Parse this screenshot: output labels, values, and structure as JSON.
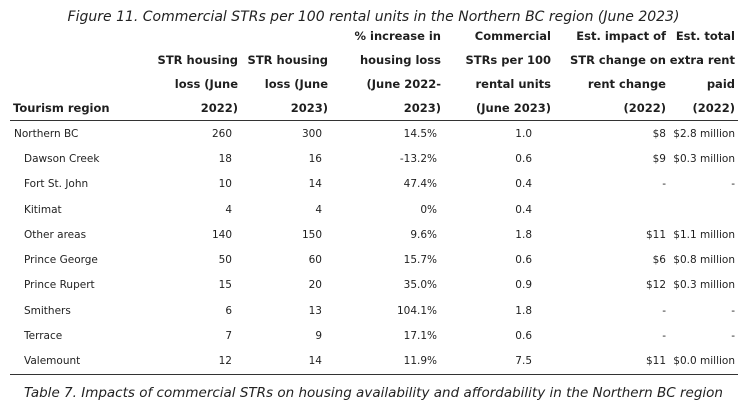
{
  "figure_caption": "Figure 11. Commercial STRs per 100 rental units in the Northern BC region (June 2023)",
  "table_caption": "Table 7. Impacts of commercial STRs on housing availability and affordability in the Northern BC region",
  "headers": [
    "Tourism region",
    "STR housing loss (June 2022)",
    "STR housing loss (June 2023)",
    "% increase in housing loss (June 2022-2023)",
    "Commercial STRs per 100 rental units (June 2023)",
    "Est. impact of STR change on rent change (2022)",
    "Est. total extra rent paid (2022)"
  ],
  "rows": [
    [
      "Northern BC",
      "260",
      "300",
      "14.5%",
      "1.0",
      "$8",
      "$2.8 million"
    ],
    [
      "Dawson Creek",
      "18",
      "16",
      "-13.2%",
      "0.6",
      "$9",
      "$0.3 million"
    ],
    [
      "Fort St. John",
      "10",
      "14",
      "47.4%",
      "0.4",
      "-",
      "-"
    ],
    [
      "Kitimat",
      "4",
      "4",
      "0%",
      "0.4",
      "",
      ""
    ],
    [
      "Other areas",
      "140",
      "150",
      "9.6%",
      "1.8",
      "$11",
      "$1.1 million"
    ],
    [
      "Prince George",
      "50",
      "60",
      "15.7%",
      "0.6",
      "$6",
      "$0.8 million"
    ],
    [
      "Prince Rupert",
      "15",
      "20",
      "35.0%",
      "0.9",
      "$12",
      "$0.3 million"
    ],
    [
      "Smithers",
      "6",
      "13",
      "104.1%",
      "1.8",
      "-",
      "-"
    ],
    [
      "Terrace",
      "7",
      "9",
      "17.1%",
      "0.6",
      "-",
      "-"
    ],
    [
      "Valemount",
      "12",
      "14",
      "11.9%",
      "7.5",
      "$11",
      "$0.0 million"
    ]
  ]
}
